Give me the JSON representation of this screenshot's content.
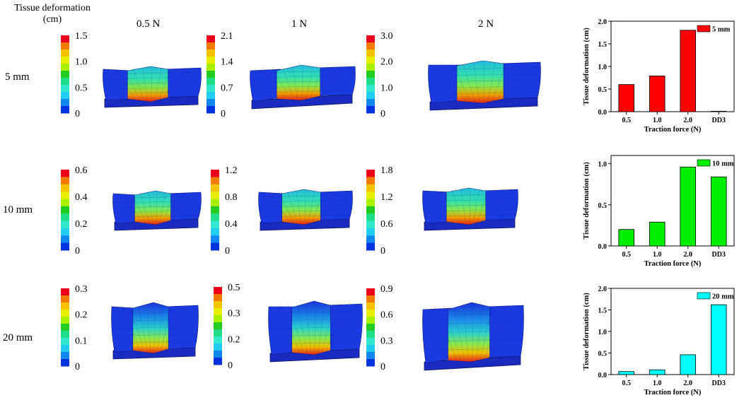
{
  "header": {
    "title_line1": "Tissue deformation",
    "title_line2": "(cm)"
  },
  "columns": [
    "0.5 N",
    "1 N",
    "2 N"
  ],
  "rows": [
    "5 mm",
    "10 mm",
    "20 mm"
  ],
  "colorbars": [
    [
      [
        "1.5",
        "1.0",
        "0.5",
        "0"
      ],
      [
        "2.1",
        "1.4",
        "0.7",
        "0"
      ],
      [
        "3.0",
        "2.0",
        "1.0",
        "0"
      ]
    ],
    [
      [
        "0.6",
        "0.4",
        "0.2",
        "0"
      ],
      [
        "1.2",
        "0.8",
        "0.4",
        "0"
      ],
      [
        "1.8",
        "1.2",
        "0.6",
        "0"
      ]
    ],
    [
      [
        "0.3",
        "0.2",
        "0.1",
        "0"
      ],
      [
        "0.5",
        "0.3",
        "0.2",
        "0"
      ],
      [
        "0.9",
        "0.6",
        "0.3",
        "0"
      ]
    ]
  ],
  "colormap": [
    "#e8001c",
    "#f07a00",
    "#f5c400",
    "#e6ee00",
    "#aaee00",
    "#22cc22",
    "#22dd88",
    "#33e6cc",
    "#22ccee",
    "#1188ee",
    "#0033dd"
  ],
  "chart_data": [
    {
      "type": "bar",
      "categories": [
        "0.5",
        "1.0",
        "2.0",
        "DD3"
      ],
      "series": [
        {
          "name": "5 mm",
          "values": [
            0.6,
            0.79,
            1.8,
            0.01
          ],
          "color": "#ff0000"
        }
      ],
      "xlabel": "Traction force (N)",
      "ylabel": "Tissue deformation (cm)",
      "ylim": [
        0,
        2.0
      ],
      "yticks": [
        "0.0",
        "0.5",
        "1.0",
        "1.5",
        "2.0"
      ],
      "legend": "top-right"
    },
    {
      "type": "bar",
      "categories": [
        "0.5",
        "1.0",
        "2.0",
        "DD3"
      ],
      "series": [
        {
          "name": "10 mm",
          "values": [
            0.2,
            0.29,
            0.96,
            0.84
          ],
          "color": "#00ee00"
        }
      ],
      "xlabel": "Traction force (N)",
      "ylabel": "Tissue deformation (cm)",
      "ylim": [
        0,
        1.1
      ],
      "yticks": [
        "0.0",
        "0.5",
        "1.0"
      ],
      "legend": "top-right"
    },
    {
      "type": "bar",
      "categories": [
        "0.5",
        "1.0",
        "2.0",
        "DD3"
      ],
      "series": [
        {
          "name": "20 mm",
          "values": [
            0.07,
            0.11,
            0.46,
            1.62
          ],
          "color": "#00ffff"
        }
      ],
      "xlabel": "Traction force (N)",
      "ylabel": "Tissue deformation (cm)",
      "ylim": [
        0,
        2.0
      ],
      "yticks": [
        "0.0",
        "0.5",
        "1.0",
        "1.5",
        "2.0"
      ],
      "legend": "top-right"
    }
  ]
}
